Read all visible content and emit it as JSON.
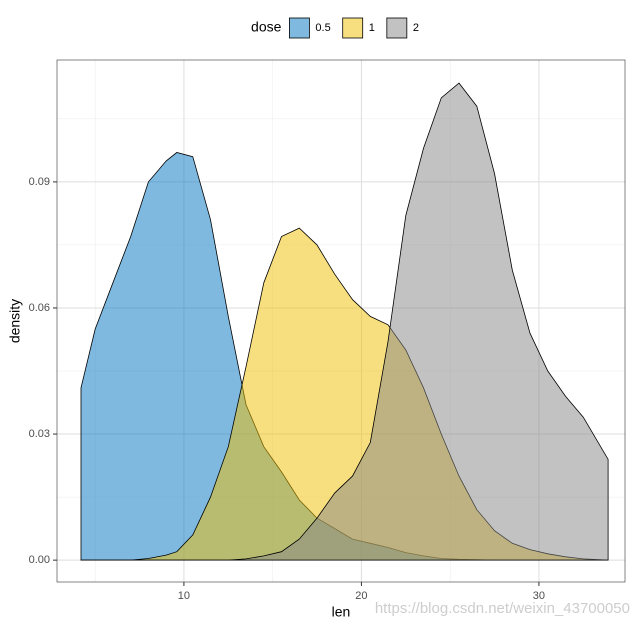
{
  "chart_data": {
    "type": "density",
    "x_label": "len",
    "y_label": "density",
    "legend_title": "dose",
    "legend_position": "top",
    "x": [
      4.2,
      5,
      6,
      7,
      8,
      9,
      9.6,
      10.5,
      11.5,
      12.5,
      13.5,
      14.5,
      15.5,
      16.5,
      17.5,
      18.5,
      19.5,
      20.5,
      21.5,
      22.5,
      23.5,
      24.5,
      25.5,
      26.5,
      27.5,
      28.5,
      29.5,
      30.5,
      31.5,
      32.5,
      33.9
    ],
    "series": [
      {
        "name": "0.5",
        "color": "#0073C2",
        "values": [
          0.041,
          0.055,
          0.066,
          0.077,
          0.09,
          0.095,
          0.097,
          0.096,
          0.081,
          0.058,
          0.037,
          0.027,
          0.021,
          0.0143,
          0.01,
          0.0075,
          0.005,
          0.004,
          0.003,
          0.0018,
          0.001,
          0.0004,
          0.0002,
          0.0001,
          0,
          0,
          0,
          0,
          0,
          0,
          0
        ]
      },
      {
        "name": "1",
        "color": "#EFC000",
        "values": [
          0,
          0,
          0,
          0,
          0.0004,
          0.0012,
          0.002,
          0.006,
          0.015,
          0.027,
          0.046,
          0.066,
          0.077,
          0.079,
          0.075,
          0.068,
          0.062,
          0.058,
          0.056,
          0.05,
          0.041,
          0.03,
          0.02,
          0.012,
          0.007,
          0.004,
          0.0025,
          0.0015,
          0.0008,
          0.0003,
          0
        ]
      },
      {
        "name": "2",
        "color": "#868686",
        "values": [
          0,
          0,
          0,
          0,
          0,
          0,
          0,
          0,
          0,
          0,
          0.0003,
          0.001,
          0.002,
          0.005,
          0.01,
          0.016,
          0.02,
          0.028,
          0.052,
          0.082,
          0.098,
          0.11,
          0.1135,
          0.108,
          0.092,
          0.069,
          0.054,
          0.045,
          0.039,
          0.034,
          0.024
        ]
      }
    ],
    "fill_opacity": 0.5,
    "xlim": [
      2.85,
      34.85
    ],
    "xticks": [
      10,
      20,
      30
    ],
    "ylim": [
      -0.0052,
      0.119
    ],
    "yticks": [
      {
        "value": 0,
        "label": "0.00"
      },
      {
        "value": 0.03,
        "label": "0.03"
      },
      {
        "value": 0.06,
        "label": "0.06"
      },
      {
        "value": 0.09,
        "label": "0.09"
      }
    ],
    "grid": true,
    "minor_grid": true,
    "watermark": "https://blog.csdn.net/weixin_43700050"
  }
}
